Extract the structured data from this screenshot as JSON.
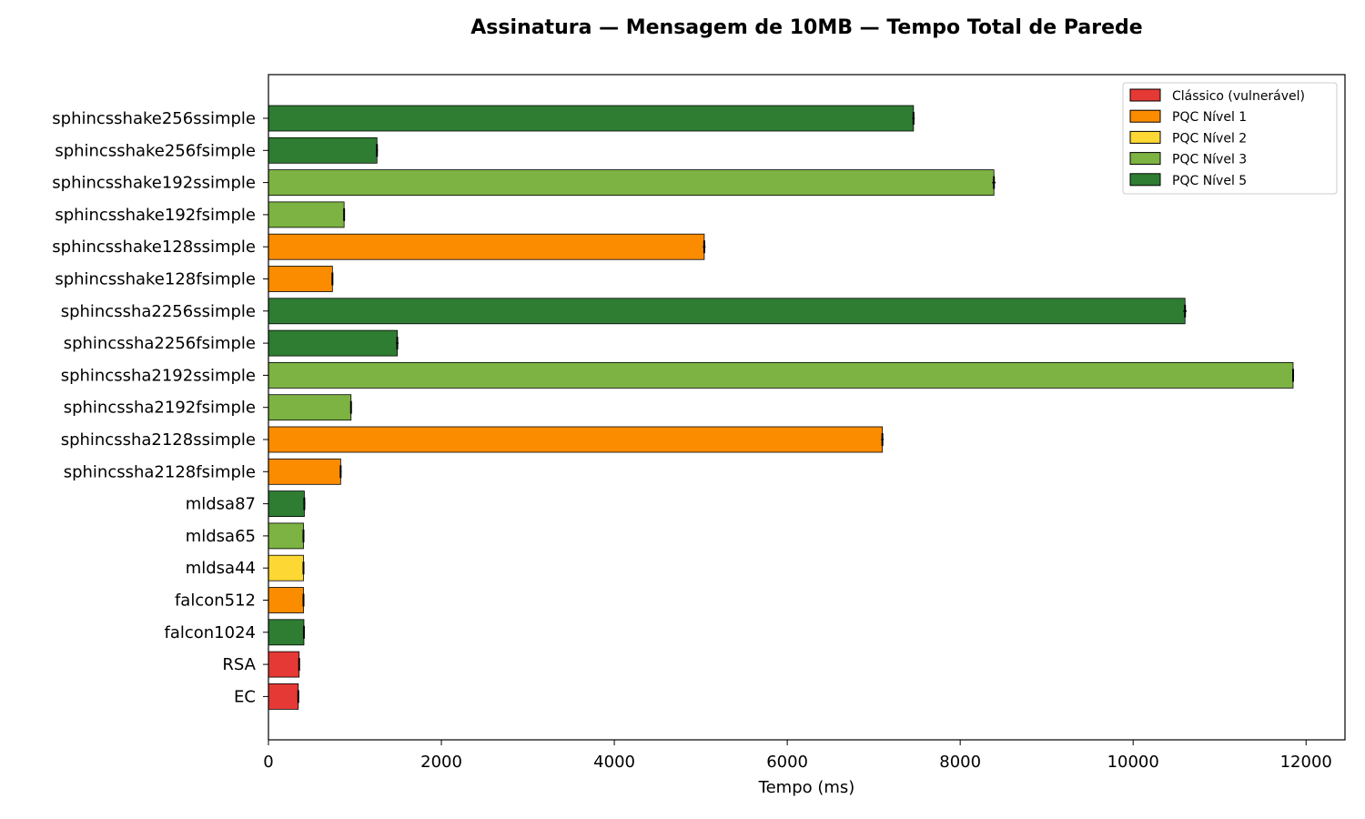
{
  "chart_data": {
    "type": "bar",
    "orientation": "horizontal",
    "title": "Assinatura — Mensagem de 10MB — Tempo Total de Parede",
    "xlabel": "Tempo (ms)",
    "ylabel": "",
    "xlim": [
      0,
      12450
    ],
    "xticks": [
      0,
      2000,
      4000,
      6000,
      8000,
      10000,
      12000
    ],
    "grid": false,
    "legend_position": "top-right",
    "legend": [
      {
        "label": "Clássico (vulnerável)",
        "color": "#e53935"
      },
      {
        "label": "PQC Nível 1",
        "color": "#fb8c00"
      },
      {
        "label": "PQC Nível 2",
        "color": "#fdd835"
      },
      {
        "label": "PQC Nível 3",
        "color": "#7cb342"
      },
      {
        "label": "PQC Nível 5",
        "color": "#2e7d32"
      }
    ],
    "bars": [
      {
        "label": "sphincsshake256ssimple",
        "value": 7460,
        "error": 15,
        "level": 4
      },
      {
        "label": "sphincsshake256fsimple",
        "value": 1255,
        "error": 12,
        "level": 4
      },
      {
        "label": "sphincsshake192ssimple",
        "value": 8390,
        "error": 20,
        "level": 3
      },
      {
        "label": "sphincsshake192fsimple",
        "value": 875,
        "error": 8,
        "level": 3
      },
      {
        "label": "sphincsshake128ssimple",
        "value": 5040,
        "error": 15,
        "level": 1
      },
      {
        "label": "sphincsshake128fsimple",
        "value": 740,
        "error": 8,
        "level": 1
      },
      {
        "label": "sphincssha2256ssimple",
        "value": 10600,
        "error": 20,
        "level": 4
      },
      {
        "label": "sphincssha2256fsimple",
        "value": 1490,
        "error": 15,
        "level": 4
      },
      {
        "label": "sphincssha2192ssimple",
        "value": 11850,
        "error": 8,
        "level": 3
      },
      {
        "label": "sphincssha2192fsimple",
        "value": 955,
        "error": 8,
        "level": 3
      },
      {
        "label": "sphincssha2128ssimple",
        "value": 7100,
        "error": 15,
        "level": 1
      },
      {
        "label": "sphincssha2128fsimple",
        "value": 835,
        "error": 10,
        "level": 1
      },
      {
        "label": "mldsa87",
        "value": 415,
        "error": 10,
        "level": 4
      },
      {
        "label": "mldsa65",
        "value": 405,
        "error": 8,
        "level": 3
      },
      {
        "label": "mldsa44",
        "value": 405,
        "error": 8,
        "level": 2
      },
      {
        "label": "falcon512",
        "value": 405,
        "error": 8,
        "level": 1
      },
      {
        "label": "falcon1024",
        "value": 410,
        "error": 8,
        "level": 4
      },
      {
        "label": "RSA",
        "value": 355,
        "error": 8,
        "level": 0
      },
      {
        "label": "EC",
        "value": 345,
        "error": 8,
        "level": 0
      }
    ]
  }
}
